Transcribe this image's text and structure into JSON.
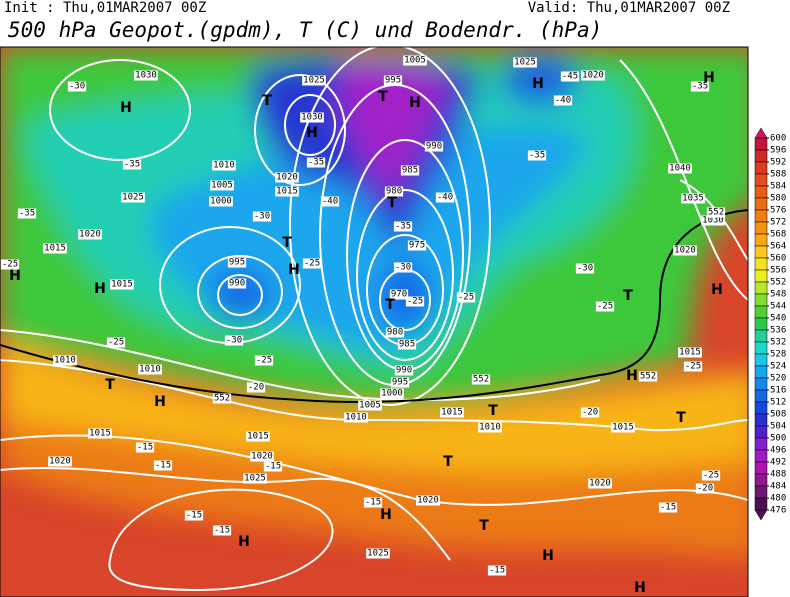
{
  "header": {
    "init": "Init : Thu,01MAR2007 00Z",
    "valid": "Valid: Thu,01MAR2007 00Z",
    "title": "500 hPa Geopot.(gpdm), T (C) und Bodendr. (hPa)"
  },
  "colorbar": {
    "levels": [
      600,
      596,
      592,
      588,
      584,
      580,
      576,
      572,
      568,
      564,
      560,
      556,
      552,
      548,
      544,
      540,
      536,
      532,
      528,
      524,
      520,
      516,
      512,
      508,
      504,
      500,
      496,
      492,
      488,
      484,
      480,
      476
    ],
    "colors": [
      "#d4105a",
      "#c8143c",
      "#d02828",
      "#dc3a22",
      "#e24c1e",
      "#e85c18",
      "#ec6e14",
      "#f07f12",
      "#f49410",
      "#f8a814",
      "#fcc81c",
      "#f8e020",
      "#e8f020",
      "#b8e828",
      "#84dc2c",
      "#50d030",
      "#2cc84c",
      "#20d094",
      "#1cd8c8",
      "#18c8e8",
      "#14a8f0",
      "#1488f0",
      "#1468e8",
      "#1448e0",
      "#2830d0",
      "#5020d0",
      "#8020d0",
      "#a018c8",
      "#b014b0",
      "#901890",
      "#701870",
      "#501050"
    ]
  },
  "map_labels": {
    "isobars": [
      "1030",
      "1025",
      "1030",
      "1005",
      "995",
      "1025",
      "1020",
      "1020",
      "1015",
      "1010",
      "1005",
      "1000",
      "1025",
      "1020",
      "1015",
      "1015",
      "990",
      "985",
      "980",
      "975",
      "970",
      "980",
      "985",
      "990",
      "995",
      "1000",
      "1005",
      "1010",
      "1015",
      "1010",
      "1015",
      "1020",
      "1040",
      "1035",
      "1030",
      "1015",
      "1010",
      "1010",
      "995",
      "990",
      "1015",
      "1015",
      "1020",
      "1025",
      "1020",
      "1020",
      "1020",
      "1025"
    ],
    "temperatures": [
      "-30",
      "-35",
      "-35",
      "-25",
      "-40",
      "-35",
      "-30",
      "-25",
      "-40",
      "-35",
      "-30",
      "-25",
      "-25",
      "-30",
      "-25",
      "-25",
      "-20",
      "-35",
      "-45",
      "-40",
      "-35",
      "-30",
      "-25",
      "-25",
      "-20",
      "-15",
      "-15",
      "-15",
      "-15",
      "-15",
      "-15",
      "-15",
      "-25",
      "-20",
      "-15"
    ],
    "centers": [
      "H",
      "T",
      "T",
      "H",
      "H",
      "H",
      "H",
      "T",
      "T",
      "H",
      "H",
      "H",
      "T",
      "T",
      "H",
      "T",
      "H",
      "H",
      "T",
      "T",
      "T",
      "T",
      "H",
      "H",
      "H",
      "H"
    ],
    "heights": [
      "552",
      "552",
      "552",
      "552"
    ]
  }
}
